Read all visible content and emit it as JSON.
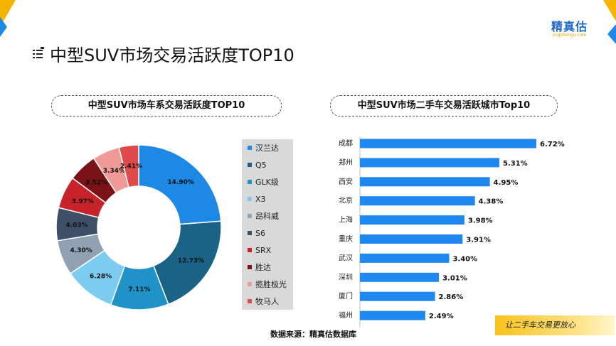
{
  "header": {
    "title": "中型SUV市场交易活跃度TOP10",
    "logo_text": "精真估",
    "logo_sub": "jingzhengu.com"
  },
  "left_panel_title": "中型SUV市场车系交易活跃度TOP10",
  "right_panel_title": "中型SUV市场二手车交易活跃城市Top10",
  "footer": {
    "source": "数据来源：精真估数据库",
    "slogan": "让二手车交易更放心"
  },
  "colors": {
    "accent_blue": "#1e88e5",
    "accent_yellow": "#f5b400",
    "bar": "#1e88f0"
  },
  "chart_data": [
    {
      "type": "pie",
      "title": "中型SUV市场车系交易活跃度TOP10",
      "legend_position": "right",
      "donut": true,
      "slices": [
        {
          "label": "汉兰达",
          "value": 14.9,
          "display": "14.90%",
          "color": "#1e88e5"
        },
        {
          "label": "Q5",
          "value": 12.73,
          "display": "12.73%",
          "color": "#1b6287"
        },
        {
          "label": "GLK级",
          "value": 7.11,
          "display": "7.11%",
          "color": "#1f92c8"
        },
        {
          "label": "X3",
          "value": 6.28,
          "display": "6.28%",
          "color": "#7ccbf0"
        },
        {
          "label": "昂科威",
          "value": 4.3,
          "display": "4.30%",
          "color": "#8fa1b3"
        },
        {
          "label": "S6",
          "value": 4.03,
          "display": "4.03%",
          "color": "#3e5068"
        },
        {
          "label": "SRX",
          "value": 3.97,
          "display": "3.97%",
          "color": "#c8232b"
        },
        {
          "label": "胜达",
          "value": 3.52,
          "display": "3.52%",
          "color": "#7a1218"
        },
        {
          "label": "揽胜极光",
          "value": 3.34,
          "display": "3.34%",
          "color": "#f09999"
        },
        {
          "label": "牧马人",
          "value": 2.41,
          "display": "2.41%",
          "color": "#e04a4a"
        }
      ]
    },
    {
      "type": "bar",
      "orientation": "horizontal",
      "title": "中型SUV市场二手车交易活跃城市Top10",
      "categories": [
        "成都",
        "郑州",
        "西安",
        "北京",
        "上海",
        "重庆",
        "武汉",
        "深圳",
        "厦门",
        "福州"
      ],
      "values": [
        6.72,
        5.31,
        4.95,
        4.38,
        3.98,
        3.91,
        3.4,
        3.01,
        2.86,
        2.49
      ],
      "labels": [
        "6.72%",
        "5.31%",
        "4.95%",
        "4.38%",
        "3.98%",
        "3.91%",
        "3.40%",
        "3.01%",
        "2.86%",
        "2.49%"
      ],
      "unit": "%",
      "xlim": [
        0,
        6.72
      ]
    }
  ]
}
